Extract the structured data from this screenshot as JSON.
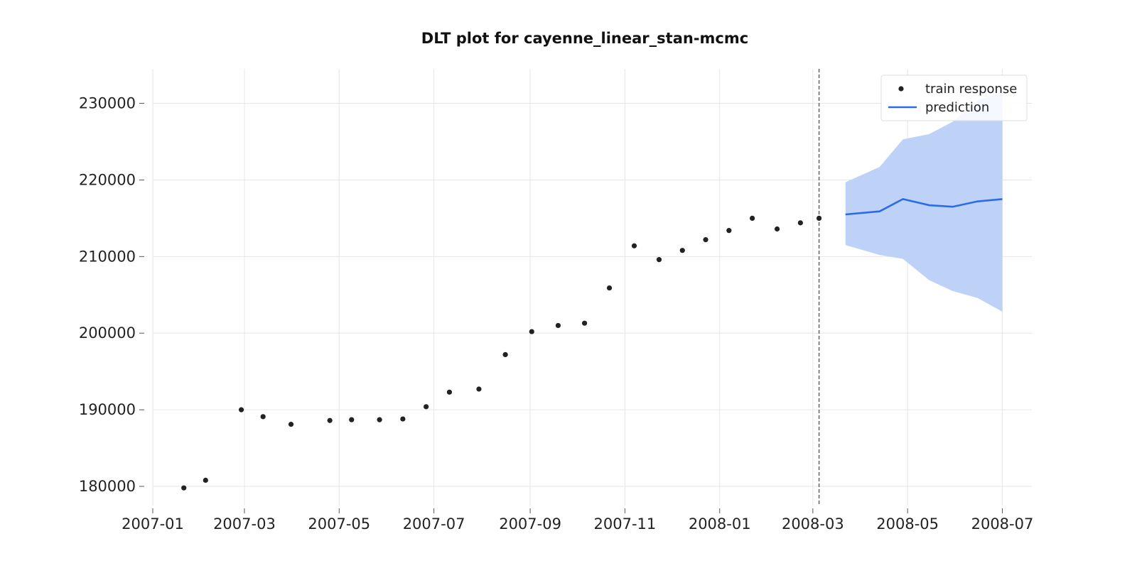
{
  "chart_data": {
    "type": "line",
    "title": "DLT plot for cayenne_linear_stan-mcmc",
    "xlabel": "",
    "ylabel": "",
    "x_axis": {
      "type": "date",
      "range": [
        "2007-01-01",
        "2008-07-20"
      ]
    },
    "y_axis": {
      "range": [
        177500,
        234500
      ]
    },
    "x_ticks": [
      "2007-01",
      "2007-03",
      "2007-05",
      "2007-07",
      "2007-09",
      "2007-11",
      "2008-01",
      "2008-03",
      "2008-05",
      "2008-07"
    ],
    "x_tick_dates": [
      "2007-01-01",
      "2007-03-01",
      "2007-05-01",
      "2007-07-01",
      "2007-09-01",
      "2007-11-01",
      "2008-01-01",
      "2008-03-01",
      "2008-05-01",
      "2008-07-01"
    ],
    "y_ticks": [
      180000,
      190000,
      200000,
      210000,
      220000,
      230000
    ],
    "y_tick_labels": [
      "180000",
      "190000",
      "200000",
      "210000",
      "220000",
      "230000"
    ],
    "grid": true,
    "legend": {
      "position": "top-right",
      "entries": [
        {
          "label": "train response",
          "marker": "dot",
          "color": "#222222"
        },
        {
          "label": "prediction",
          "marker": "line",
          "color": "#2b6ce6"
        }
      ]
    },
    "train_cutoff": "2008-03-05",
    "series": [
      {
        "name": "train response",
        "kind": "scatter",
        "color": "#222222",
        "points": [
          {
            "x": "2007-01-21",
            "y": 179800
          },
          {
            "x": "2007-02-04",
            "y": 180800
          },
          {
            "x": "2007-02-27",
            "y": 190000
          },
          {
            "x": "2007-03-13",
            "y": 189100
          },
          {
            "x": "2007-03-31",
            "y": 188100
          },
          {
            "x": "2007-04-25",
            "y": 188600
          },
          {
            "x": "2007-05-09",
            "y": 188700
          },
          {
            "x": "2007-05-27",
            "y": 188700
          },
          {
            "x": "2007-06-11",
            "y": 188800
          },
          {
            "x": "2007-06-26",
            "y": 190400
          },
          {
            "x": "2007-07-11",
            "y": 192300
          },
          {
            "x": "2007-07-30",
            "y": 192700
          },
          {
            "x": "2007-08-16",
            "y": 197200
          },
          {
            "x": "2007-09-02",
            "y": 200200
          },
          {
            "x": "2007-09-19",
            "y": 201000
          },
          {
            "x": "2007-10-06",
            "y": 201300
          },
          {
            "x": "2007-10-22",
            "y": 205900
          },
          {
            "x": "2007-11-07",
            "y": 211400
          },
          {
            "x": "2007-11-23",
            "y": 209600
          },
          {
            "x": "2007-12-08",
            "y": 210800
          },
          {
            "x": "2007-12-23",
            "y": 212200
          },
          {
            "x": "2008-01-07",
            "y": 213400
          },
          {
            "x": "2008-01-22",
            "y": 215000
          },
          {
            "x": "2008-02-07",
            "y": 213600
          },
          {
            "x": "2008-02-22",
            "y": 214400
          },
          {
            "x": "2008-03-05",
            "y": 215000
          }
        ]
      },
      {
        "name": "prediction",
        "kind": "line",
        "color": "#2b6ce6",
        "band_color": "#bed2f8",
        "points": [
          {
            "x": "2008-03-22",
            "y": 215500,
            "lower": 211500,
            "upper": 219700
          },
          {
            "x": "2008-04-13",
            "y": 215900,
            "lower": 210200,
            "upper": 221700
          },
          {
            "x": "2008-04-28",
            "y": 217500,
            "lower": 209700,
            "upper": 225300
          },
          {
            "x": "2008-05-15",
            "y": 216700,
            "lower": 206900,
            "upper": 226000
          },
          {
            "x": "2008-05-30",
            "y": 216500,
            "lower": 205500,
            "upper": 227600
          },
          {
            "x": "2008-06-15",
            "y": 217200,
            "lower": 204600,
            "upper": 230400
          },
          {
            "x": "2008-07-01",
            "y": 217500,
            "lower": 202800,
            "upper": 231400
          }
        ]
      }
    ]
  }
}
